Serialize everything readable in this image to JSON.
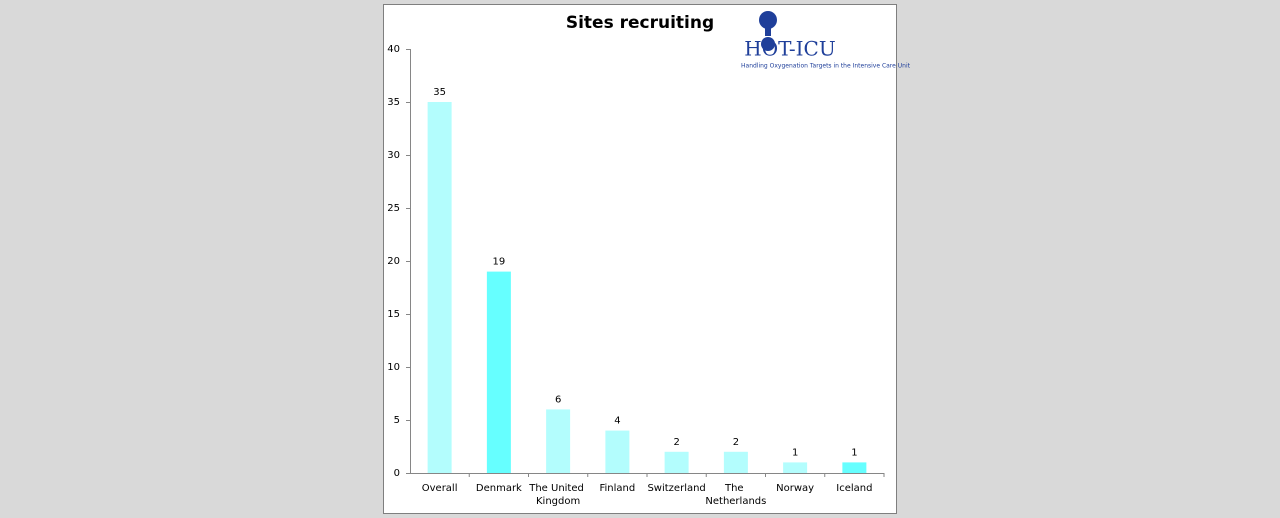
{
  "chart_data": {
    "type": "bar",
    "title": "Sites recruiting",
    "logo_text": "HOT-ICU",
    "logo_subtitle": "Handling Oxygenation Targets in the Intensive Care Unit",
    "categories": [
      "Overall",
      "Denmark",
      "The United Kingdom",
      "Finland",
      "Switzerland",
      "The Netherlands",
      "Norway",
      "Iceland"
    ],
    "values": [
      35,
      19,
      6,
      4,
      2,
      2,
      1,
      1
    ],
    "colors": [
      "#b3fdfd",
      "#66ffff",
      "#b3fdfd",
      "#b3fdfd",
      "#b3fdfd",
      "#b3fdfd",
      "#b3fdfd",
      "#66ffff"
    ],
    "ylim": [
      0,
      40
    ],
    "yticks": [
      0,
      5,
      10,
      15,
      20,
      25,
      30,
      35,
      40
    ],
    "grid": false
  }
}
